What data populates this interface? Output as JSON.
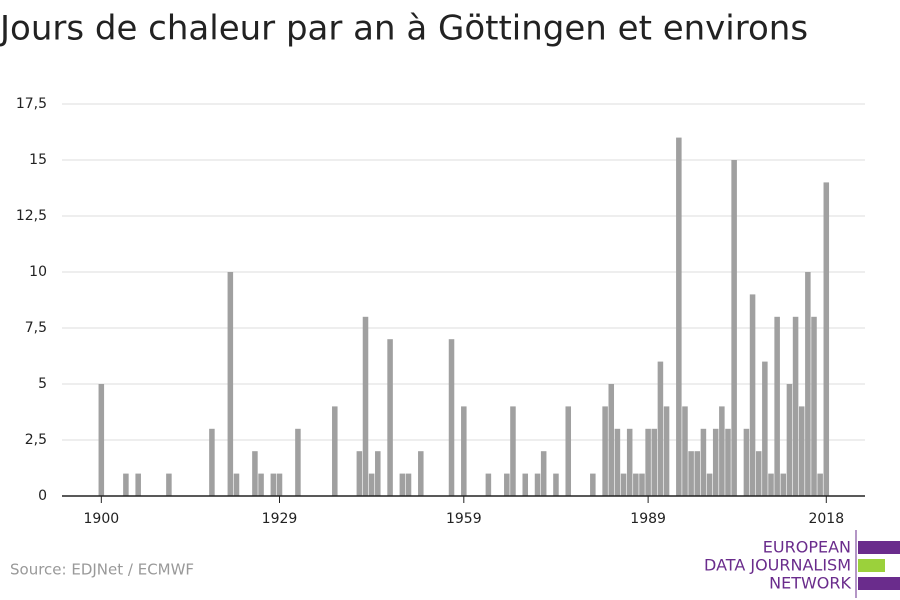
{
  "chart_data": {
    "type": "bar",
    "title": "Jours de chaleur par an à Göttingen et environs",
    "source": "Source: EDJNet / ECMWF",
    "logo": [
      "EUROPEAN",
      "DATA JOURNALISM",
      "NETWORK"
    ],
    "color": "#a0a0a0",
    "x": [
      1900,
      1904,
      1906,
      1911,
      1918,
      1921,
      1922,
      1925,
      1926,
      1928,
      1929,
      1932,
      1938,
      1942,
      1943,
      1944,
      1945,
      1947,
      1949,
      1950,
      1952,
      1957,
      1959,
      1963,
      1966,
      1967,
      1969,
      1971,
      1972,
      1974,
      1976,
      1980,
      1982,
      1983,
      1984,
      1985,
      1986,
      1987,
      1988,
      1989,
      1990,
      1991,
      1992,
      1994,
      1995,
      1996,
      1997,
      1998,
      1999,
      2000,
      2001,
      2002,
      2003,
      2005,
      2006,
      2007,
      2008,
      2009,
      2010,
      2011,
      2012,
      2013,
      2014,
      2015,
      2016,
      2017,
      2018
    ],
    "values": [
      5,
      1,
      1,
      1,
      3,
      10,
      1,
      2,
      1,
      1,
      1,
      3,
      4,
      2,
      8,
      1,
      2,
      7,
      1,
      1,
      2,
      7,
      4,
      1,
      1,
      4,
      1,
      1,
      2,
      1,
      4,
      1,
      4,
      5,
      3,
      1,
      3,
      1,
      1,
      3,
      3,
      6,
      4,
      16,
      4,
      2,
      2,
      3,
      1,
      3,
      4,
      3,
      15,
      3,
      9,
      2,
      6,
      1,
      8,
      1,
      5,
      8,
      4,
      10,
      8,
      1,
      14
    ],
    "xlim": [
      1893.6,
      2024.3
    ],
    "xticks": [
      1900,
      1929,
      1959,
      1989,
      2018
    ],
    "ylim": [
      0,
      17.5
    ],
    "yticks": [
      0,
      {
        "value": 2.5,
        "label": "2,5"
      },
      5,
      {
        "value": 7.5,
        "label": "7,5"
      },
      10,
      {
        "value": 12.5,
        "label": "12,5"
      },
      15,
      {
        "value": 17.5,
        "label": "17,5"
      }
    ],
    "grid": true
  }
}
